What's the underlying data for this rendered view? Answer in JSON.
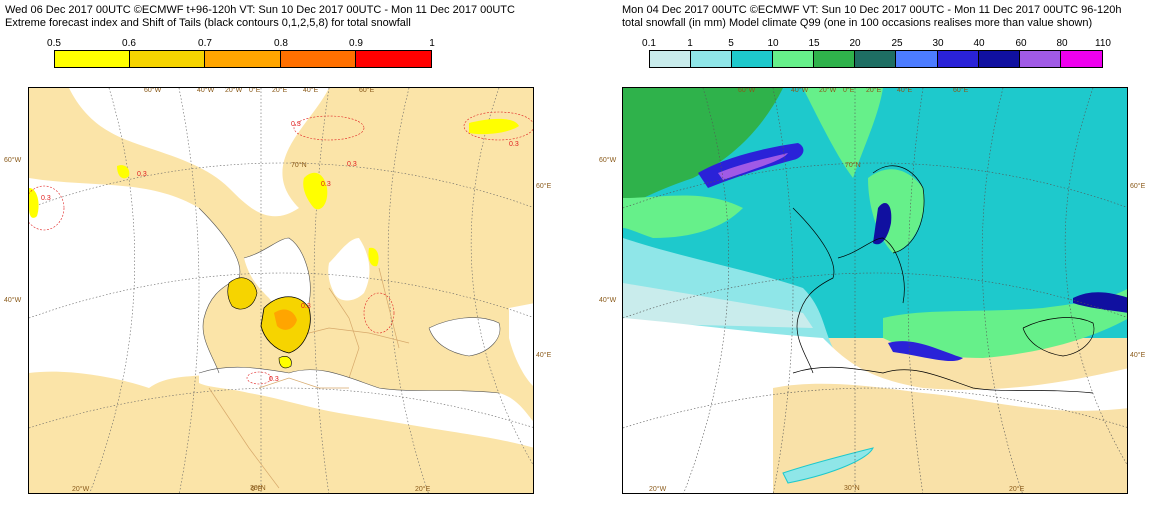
{
  "left_panel": {
    "title_line1": "Wed 06 Dec 2017 00UTC ©ECMWF t+96-120h  VT: Sun 10 Dec 2017 00UTC - Mon 11 Dec 2017 00UTC",
    "title_line2": "Extreme forecast index and Shift of Tails (black contours 0,1,2,5,8) for total snowfall",
    "legend": {
      "labels": [
        "0.5",
        "0.6",
        "0.7",
        "0.8",
        "0.9",
        "1"
      ],
      "colors": [
        "#ffff00",
        "#f6d400",
        "#ffa500",
        "#ff7000",
        "#ff0000"
      ]
    },
    "map_labels": {
      "lon_top": [
        "60°W",
        "40°W",
        "20°W",
        "0°E",
        "20°E",
        "40°E",
        "60°E"
      ],
      "lon_bottom": [
        "20°W",
        "0°E",
        "20°E"
      ],
      "lat_left": [
        "60°W",
        "40°W"
      ],
      "lat_right": [
        "60°E",
        "40°E"
      ],
      "lat_inner": [
        "70°N",
        "30°N"
      ],
      "contour_values": [
        "0.3",
        "0.3",
        "0.3",
        "0.3",
        "0.3",
        "0.3",
        "0.3",
        "0.3"
      ]
    }
  },
  "right_panel": {
    "title_line1": "Mon 04 Dec 2017 00UTC ©ECMWF VT: Sun 10 Dec 2017 00UTC - Mon 11 Dec 2017 00UTC  96-120h",
    "title_line2": "total snowfall (in mm)  Model climate Q99 (one in 100 occasions realises more than value shown)",
    "legend": {
      "labels": [
        "0.1",
        "1",
        "5",
        "10",
        "15",
        "20",
        "25",
        "30",
        "40",
        "60",
        "80",
        "110"
      ],
      "colors": [
        "#c9ecec",
        "#8fe6e8",
        "#1ec9cc",
        "#66f08a",
        "#2fb24b",
        "#1e6e63",
        "#4c7cff",
        "#2a22d8",
        "#1010a0",
        "#a05ae6",
        "#ee00ee",
        "#7a0a8a"
      ]
    },
    "map_labels": {
      "lon_top": [
        "60°W",
        "40°W",
        "20°W",
        "0°E",
        "20°E",
        "40°E",
        "60°E"
      ],
      "lon_bottom": [
        "20°W",
        "30°N",
        "20°E"
      ],
      "lat_left": [
        "60°W",
        "40°W"
      ],
      "lat_right": [
        "60°E",
        "40°E"
      ],
      "lat_inner": [
        "70°N"
      ]
    }
  }
}
